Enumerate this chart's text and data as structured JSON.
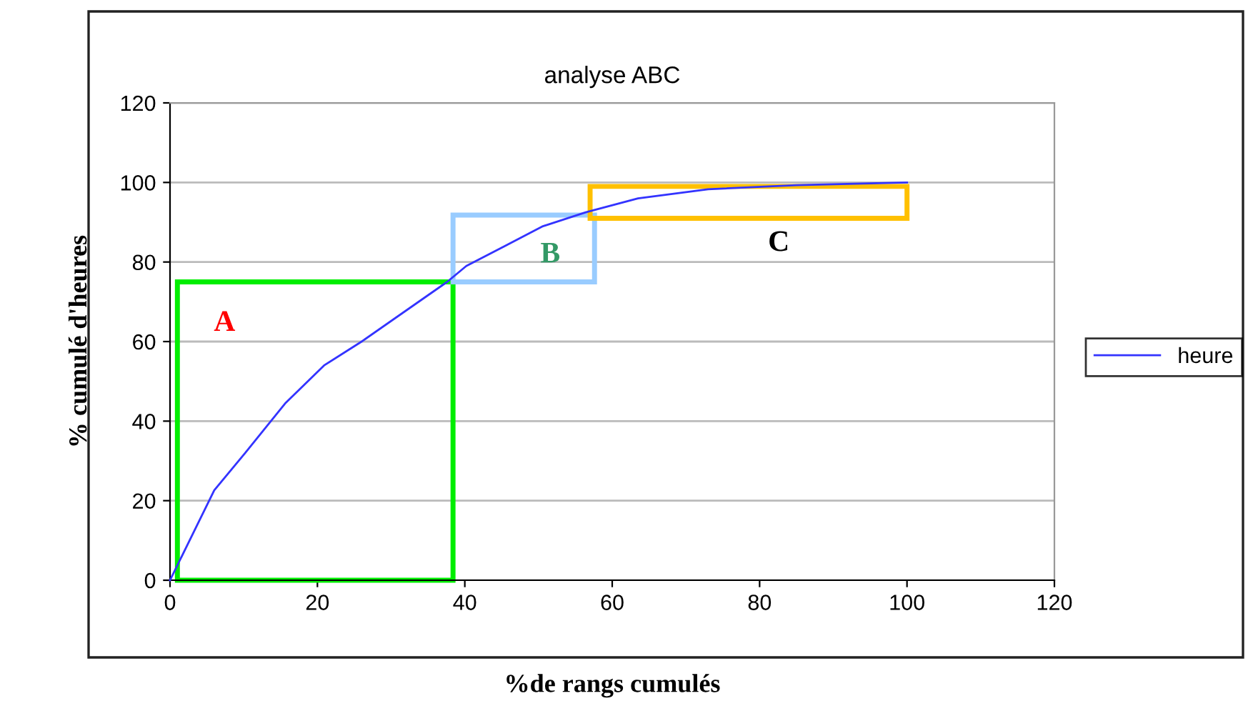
{
  "chart_data": {
    "type": "line",
    "title": "analyse ABC",
    "xlabel": "%de rangs cumulés",
    "ylabel": "% cumulé d'heures",
    "xlim": [
      0,
      120
    ],
    "xticks": [
      0,
      20,
      40,
      60,
      80,
      100,
      120
    ],
    "ylim": [
      0,
      120
    ],
    "yticks": [
      0,
      20,
      40,
      60,
      80,
      100,
      120
    ],
    "grid": "y",
    "legend": "right",
    "marker": "none",
    "line_style": "solid",
    "series": [
      {
        "name": "heure",
        "color": "#3333ff",
        "x": [
          0,
          6,
          10.2,
          15.7,
          20.9,
          26,
          37.6,
          40.2,
          45.4,
          50.6,
          56.4,
          63.5,
          73,
          85,
          100
        ],
        "values": [
          0,
          22.6,
          32,
          44.6,
          54,
          60,
          75,
          79,
          84,
          89,
          92.5,
          96,
          98.3,
          99.3,
          100
        ]
      }
    ],
    "annotations": [
      "A",
      "B",
      "C"
    ]
  }
}
